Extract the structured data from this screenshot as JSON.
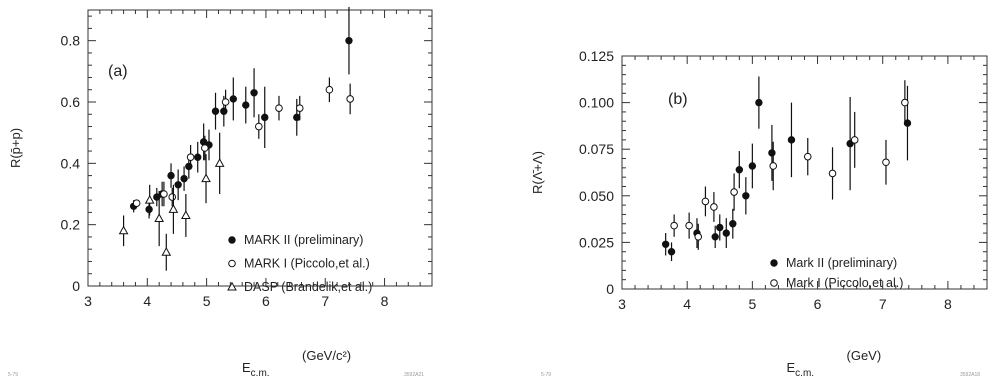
{
  "chart_data": [
    {
      "type": "scatter",
      "panel_label": "(a)",
      "xlabel": "E",
      "xlabel_sub": "c.m.",
      "xlabel_units": "(GeV/c²)",
      "ylabel": "R(p̄+p)",
      "xlim": [
        3,
        8.8
      ],
      "ylim": [
        0,
        0.9
      ],
      "xticks": [
        3,
        4,
        5,
        6,
        7,
        8
      ],
      "yticks": [
        0,
        0.2,
        0.4,
        0.6,
        0.8
      ],
      "ytick_labels": [
        "0",
        "0.2",
        "0.4",
        "0.6",
        "0.8"
      ],
      "grid": false,
      "legend_position": "lower-right",
      "corner_left": "5-79",
      "corner_right": "3592A21",
      "series": [
        {
          "name": "MARK II (preliminary)",
          "marker": "filled-circle",
          "points": [
            {
              "x": 3.77,
              "y": 0.26,
              "err": 0.02
            },
            {
              "x": 4.03,
              "y": 0.25,
              "err": 0.03
            },
            {
              "x": 4.16,
              "y": 0.29,
              "err": 0.03
            },
            {
              "x": 4.25,
              "y": 0.3,
              "err": 0.04
            },
            {
              "x": 4.4,
              "y": 0.36,
              "err": 0.04
            },
            {
              "x": 4.52,
              "y": 0.33,
              "err": 0.05
            },
            {
              "x": 4.62,
              "y": 0.35,
              "err": 0.04
            },
            {
              "x": 4.7,
              "y": 0.39,
              "err": 0.04
            },
            {
              "x": 4.85,
              "y": 0.42,
              "err": 0.05
            },
            {
              "x": 4.95,
              "y": 0.47,
              "err": 0.06
            },
            {
              "x": 5.04,
              "y": 0.46,
              "err": 0.05
            },
            {
              "x": 5.15,
              "y": 0.57,
              "err": 0.06
            },
            {
              "x": 5.29,
              "y": 0.57,
              "err": 0.05
            },
            {
              "x": 5.45,
              "y": 0.61,
              "err": 0.07
            },
            {
              "x": 5.66,
              "y": 0.59,
              "err": 0.06
            },
            {
              "x": 5.8,
              "y": 0.63,
              "err": 0.08
            },
            {
              "x": 5.98,
              "y": 0.55,
              "err": 0.1
            },
            {
              "x": 6.52,
              "y": 0.55,
              "err": 0.06
            },
            {
              "x": 7.4,
              "y": 0.8,
              "err": 0.11
            }
          ]
        },
        {
          "name": "MARK I (Piccolo,et al.)",
          "marker": "open-circle",
          "points": [
            {
              "x": 3.82,
              "y": 0.27,
              "err": 0.01
            },
            {
              "x": 4.28,
              "y": 0.3,
              "err": 0.04
            },
            {
              "x": 4.42,
              "y": 0.29,
              "err": 0.03
            },
            {
              "x": 4.73,
              "y": 0.42,
              "err": 0.04
            },
            {
              "x": 4.97,
              "y": 0.45,
              "err": 0.04
            },
            {
              "x": 5.32,
              "y": 0.6,
              "err": 0.04
            },
            {
              "x": 5.88,
              "y": 0.52,
              "err": 0.04
            },
            {
              "x": 6.22,
              "y": 0.58,
              "err": 0.04
            },
            {
              "x": 6.57,
              "y": 0.58,
              "err": 0.04
            },
            {
              "x": 7.07,
              "y": 0.64,
              "err": 0.04
            },
            {
              "x": 7.42,
              "y": 0.61,
              "err": 0.05
            }
          ]
        },
        {
          "name": "DASP (Brandelik,et al.)",
          "marker": "open-triangle",
          "points": [
            {
              "x": 3.6,
              "y": 0.18,
              "err": 0.05
            },
            {
              "x": 4.04,
              "y": 0.28,
              "err": 0.05
            },
            {
              "x": 4.2,
              "y": 0.22,
              "err": 0.09
            },
            {
              "x": 4.32,
              "y": 0.11,
              "err": 0.06
            },
            {
              "x": 4.44,
              "y": 0.25,
              "err": 0.08
            },
            {
              "x": 4.65,
              "y": 0.23,
              "err": 0.07
            },
            {
              "x": 4.99,
              "y": 0.35,
              "err": 0.08
            },
            {
              "x": 5.22,
              "y": 0.4,
              "err": 0.1
            }
          ]
        }
      ]
    },
    {
      "type": "scatter",
      "panel_label": "(b)",
      "xlabel": "E",
      "xlabel_sub": "c.m.",
      "xlabel_units": "(GeV)",
      "ylabel": "R(Λ̄+Λ)",
      "xlim": [
        3,
        8.6
      ],
      "ylim": [
        0,
        0.125
      ],
      "xticks": [
        3,
        4,
        5,
        6,
        7,
        8
      ],
      "yticks": [
        0,
        0.025,
        0.05,
        0.075,
        0.1,
        0.125
      ],
      "ytick_labels": [
        "0",
        "0.025",
        "0.050",
        "0.075",
        "0.100",
        "0.125"
      ],
      "grid": false,
      "legend_position": "lower-right",
      "corner_left": "5-79",
      "corner_right": "3592A18",
      "series": [
        {
          "name": "Mark II (preliminary)",
          "marker": "filled-circle",
          "points": [
            {
              "x": 3.67,
              "y": 0.024,
              "err": 0.006
            },
            {
              "x": 3.76,
              "y": 0.02,
              "err": 0.005
            },
            {
              "x": 4.15,
              "y": 0.03,
              "err": 0.008
            },
            {
              "x": 4.43,
              "y": 0.028,
              "err": 0.006
            },
            {
              "x": 4.5,
              "y": 0.033,
              "err": 0.007
            },
            {
              "x": 4.6,
              "y": 0.03,
              "err": 0.008
            },
            {
              "x": 4.7,
              "y": 0.035,
              "err": 0.008
            },
            {
              "x": 4.8,
              "y": 0.064,
              "err": 0.01
            },
            {
              "x": 4.9,
              "y": 0.05,
              "err": 0.01
            },
            {
              "x": 5.0,
              "y": 0.066,
              "err": 0.012
            },
            {
              "x": 5.1,
              "y": 0.1,
              "err": 0.014
            },
            {
              "x": 5.3,
              "y": 0.073,
              "err": 0.015
            },
            {
              "x": 5.6,
              "y": 0.08,
              "err": 0.02
            },
            {
              "x": 6.5,
              "y": 0.078,
              "err": 0.025
            },
            {
              "x": 7.38,
              "y": 0.089,
              "err": 0.02
            }
          ]
        },
        {
          "name": "Mark I (Piccolo,et al.)",
          "marker": "open-circle",
          "points": [
            {
              "x": 3.8,
              "y": 0.034,
              "err": 0.006
            },
            {
              "x": 4.03,
              "y": 0.034,
              "err": 0.007
            },
            {
              "x": 4.17,
              "y": 0.028,
              "err": 0.007
            },
            {
              "x": 4.28,
              "y": 0.047,
              "err": 0.008
            },
            {
              "x": 4.41,
              "y": 0.044,
              "err": 0.008
            },
            {
              "x": 4.72,
              "y": 0.052,
              "err": 0.01
            },
            {
              "x": 5.32,
              "y": 0.066,
              "err": 0.013
            },
            {
              "x": 5.85,
              "y": 0.071,
              "err": 0.01
            },
            {
              "x": 6.23,
              "y": 0.062,
              "err": 0.014
            },
            {
              "x": 6.57,
              "y": 0.08,
              "err": 0.015
            },
            {
              "x": 7.05,
              "y": 0.068,
              "err": 0.012
            },
            {
              "x": 7.34,
              "y": 0.1,
              "err": 0.012
            }
          ]
        }
      ]
    }
  ]
}
